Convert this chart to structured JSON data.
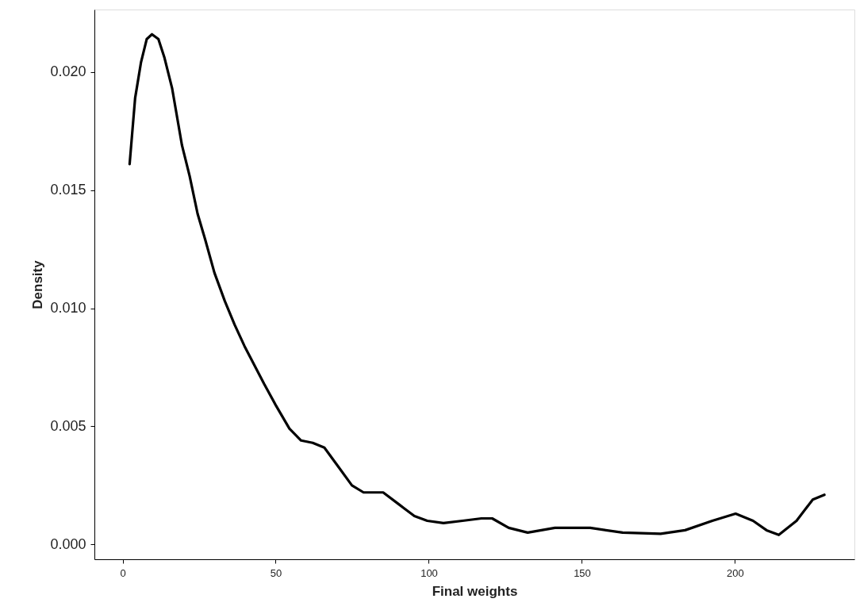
{
  "chart_data": {
    "type": "line",
    "xlabel": "Final weights",
    "ylabel": "Density",
    "x": [
      2.3,
      4.1,
      6.0,
      7.9,
      9.6,
      11.7,
      13.7,
      16.2,
      19.4,
      21.9,
      24.5,
      27.0,
      30.0,
      33.4,
      36.6,
      39.8,
      43.0,
      46.2,
      50.0,
      54.5,
      58.3,
      62.1,
      65.9,
      70.4,
      74.9,
      78.7,
      85.1,
      90.2,
      95.3,
      99.5,
      104.8,
      111.0,
      117.2,
      120.7,
      126.1,
      132.3,
      141.2,
      152.7,
      163.3,
      175.7,
      183.7,
      192.6,
      200.2,
      205.9,
      210.3,
      214.3,
      220.1,
      225.4,
      229.2
    ],
    "series": [
      {
        "color": "#000000",
        "values": [
          0.0161,
          0.0189,
          0.0204,
          0.0214,
          0.0216,
          0.0214,
          0.0206,
          0.0193,
          0.0169,
          0.0156,
          0.014,
          0.0129,
          0.0115,
          0.0103,
          0.0093,
          0.0084,
          0.0076,
          0.0068,
          0.0059,
          0.0049,
          0.0044,
          0.0043,
          0.0041,
          0.0033,
          0.0025,
          0.0022,
          0.0022,
          0.0017,
          0.0012,
          0.001,
          0.0009,
          0.001,
          0.0011,
          0.0011,
          0.0007,
          0.0005,
          0.0007,
          0.0007,
          0.0005,
          0.00045,
          0.0006,
          0.001,
          0.0013,
          0.001,
          0.0006,
          0.0004,
          0.001,
          0.0019,
          0.0021
        ]
      }
    ],
    "xlim": [
      -9.2,
      239
    ],
    "ylim": [
      -0.00063,
      0.02265
    ],
    "xticks": [
      0,
      50,
      100,
      150,
      200
    ],
    "yticks": [
      {
        "value": 0,
        "label": "0.000"
      },
      {
        "value": 0.005,
        "label": "0.005"
      },
      {
        "value": 0.01,
        "label": "0.010"
      },
      {
        "value": 0.015,
        "label": "0.015"
      },
      {
        "value": 0.02,
        "label": "0.020"
      }
    ],
    "grid": false,
    "line_style": "solid",
    "marker": "none"
  }
}
